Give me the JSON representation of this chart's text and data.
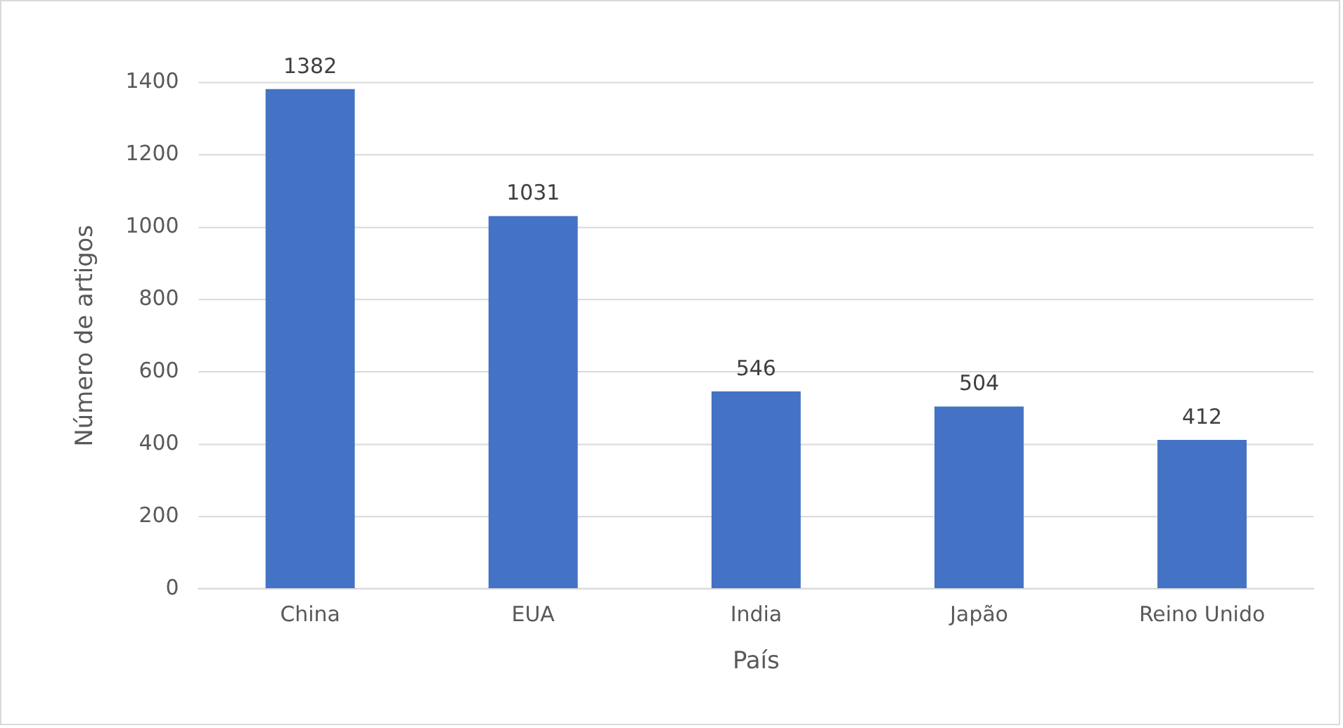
{
  "chart_data": {
    "type": "bar",
    "xlabel": "País",
    "ylabel": "Número de artigos",
    "categories": [
      "China",
      "EUA",
      "India",
      "Japão",
      "Reino Unido"
    ],
    "values": [
      1382,
      1031,
      546,
      504,
      412
    ],
    "color": "#4472c4",
    "ylim": [
      0,
      1400
    ],
    "yticks": [
      0,
      200,
      400,
      600,
      800,
      1000,
      1200,
      1400
    ],
    "grid": "y",
    "legend": false,
    "data_labels": true
  }
}
